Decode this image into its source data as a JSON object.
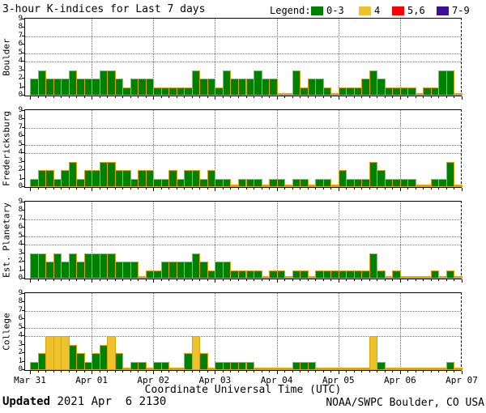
{
  "chart_data": {
    "type": "bar",
    "title": "3-hour K-indices for Last 7 days",
    "xlabel": "Coordinate Universal Time (UTC)",
    "x_tick_labels": [
      "Mar 31",
      "Apr 01",
      "Apr 02",
      "Apr 03",
      "Apr 04",
      "Apr 05",
      "Apr 06",
      "Apr 07"
    ],
    "y_ticks": [
      0,
      1,
      2,
      3,
      4,
      5,
      6,
      7,
      8,
      9
    ],
    "ylim": [
      0,
      9
    ],
    "grid_y_values": [
      4,
      5,
      7
    ],
    "intervals_per_day": 8,
    "interval_hours": 3,
    "legend": {
      "label": "Legend:",
      "items": [
        {
          "range": "0-3",
          "color": "#008000"
        },
        {
          "range": "4",
          "color": "#EDC22C"
        },
        {
          "range": "5,6",
          "color": "#FF0000"
        },
        {
          "range": "7-9",
          "color": "#3D0E9B"
        }
      ]
    },
    "colors": {
      "green": "#008000",
      "yellow": "#EDC22C",
      "red": "#FF0000",
      "purple": "#3D0E9B",
      "bar_outline": "#D9A700",
      "grid": "#7a7a7a"
    },
    "panels": [
      {
        "station": "Boulder",
        "values": [
          2,
          3,
          2,
          2,
          2,
          3,
          2,
          2,
          2,
          3,
          3,
          2,
          1,
          2,
          2,
          2,
          1,
          1,
          1,
          1,
          1,
          3,
          2,
          2,
          1,
          3,
          2,
          2,
          2,
          3,
          2,
          2,
          0,
          0,
          3,
          1,
          2,
          2,
          1,
          0,
          1,
          1,
          1,
          2,
          3,
          2,
          1,
          1,
          1,
          1,
          0,
          1,
          1,
          3,
          3,
          0
        ]
      },
      {
        "station": "Fredericksburg",
        "values": [
          1,
          2,
          2,
          1,
          2,
          3,
          1,
          2,
          2,
          3,
          3,
          2,
          2,
          1,
          2,
          2,
          1,
          1,
          2,
          1,
          2,
          2,
          1,
          2,
          1,
          1,
          0,
          1,
          1,
          1,
          0,
          1,
          1,
          0,
          1,
          1,
          0,
          1,
          1,
          0,
          2,
          1,
          1,
          1,
          3,
          2,
          1,
          1,
          1,
          1,
          0,
          0,
          1,
          1,
          3,
          0
        ]
      },
      {
        "station": "Est. Planetary",
        "values": [
          3,
          3,
          2,
          3,
          2,
          3,
          2,
          3,
          3,
          3,
          3,
          2,
          2,
          2,
          0,
          1,
          1,
          2,
          2,
          2,
          2,
          3,
          2,
          1,
          2,
          2,
          1,
          1,
          1,
          1,
          0,
          1,
          1,
          0,
          1,
          1,
          0,
          1,
          1,
          1,
          1,
          1,
          1,
          1,
          3,
          1,
          0,
          1,
          0,
          0,
          0,
          0,
          1,
          0,
          1,
          0
        ]
      },
      {
        "station": "College",
        "values": [
          1,
          2,
          4,
          4,
          4,
          3,
          2,
          1,
          2,
          3,
          4,
          2,
          0,
          1,
          1,
          0,
          1,
          1,
          0,
          0,
          2,
          4,
          2,
          0,
          1,
          1,
          1,
          1,
          1,
          0,
          0,
          0,
          0,
          0,
          1,
          1,
          1,
          0,
          0,
          0,
          0,
          0,
          0,
          0,
          4,
          1,
          0,
          0,
          0,
          0,
          0,
          0,
          0,
          0,
          1,
          0
        ]
      }
    ]
  },
  "footer": {
    "updated_label": "Updated",
    "updated_value": " 2021 Apr  6 2130",
    "credit": "NOAA/SWPC Boulder, CO USA"
  }
}
